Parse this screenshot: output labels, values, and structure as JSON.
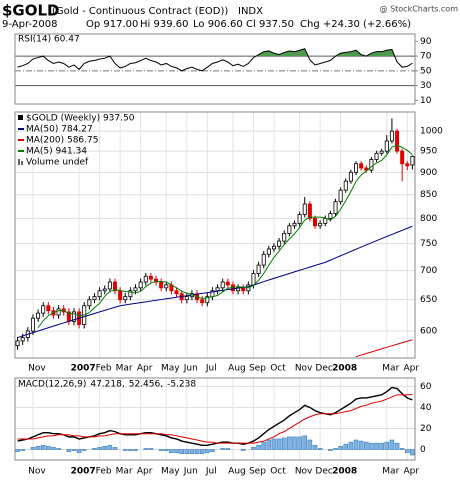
{
  "header": {
    "symbol": "$GOLD",
    "description": "(Gold - Continuous Contract (EOD))",
    "exchange": "INDX",
    "source": "@ StockCharts.com",
    "date": "9-Apr-2008",
    "open": "Op 917.00",
    "high": "Hi 939.60",
    "low": "Lo 906.60",
    "close": "Cl 937.50",
    "change": "Chg +24.30 (+2.66%)"
  },
  "chart_data": [
    {
      "type": "line",
      "title": "RSI(14) 60.47",
      "series": [
        {
          "color": "#000000",
          "values": [
            55,
            57,
            60,
            66,
            68,
            70,
            64,
            60,
            62,
            60,
            55,
            58,
            52,
            60,
            63,
            64,
            66,
            67,
            70,
            60,
            54,
            56,
            60,
            61,
            64,
            67,
            64,
            62,
            58,
            60,
            56,
            54,
            50,
            53,
            55,
            52,
            50,
            55,
            60,
            62,
            65,
            62,
            57,
            59,
            56,
            60,
            68,
            72,
            76,
            77,
            74,
            72,
            75,
            77,
            76,
            78,
            80,
            65,
            58,
            60,
            62,
            64,
            70,
            74,
            75,
            76,
            78,
            72,
            70,
            74,
            76,
            76,
            78,
            79,
            62,
            55,
            56,
            60.47
          ]
        }
      ],
      "ylim": [
        5,
        100
      ],
      "yticks": [
        10,
        30,
        50,
        70,
        90
      ],
      "overbought": 70,
      "oversold": 30,
      "midline": 50,
      "fill_color": "#4e9a4e"
    },
    {
      "type": "candlestick",
      "title": "$GOLD (Weekly) 937.50",
      "categories": [
        null,
        null,
        null,
        "Nov",
        null,
        null,
        null,
        null,
        null,
        null,
        null,
        null,
        "2007",
        null,
        null,
        null,
        "Feb",
        null,
        null,
        null,
        "Mar",
        null,
        null,
        null,
        "Apr",
        null,
        null,
        null,
        null,
        "May",
        null,
        null,
        null,
        "Jun",
        null,
        null,
        null,
        "Jul",
        null,
        null,
        null,
        null,
        "Aug",
        null,
        null,
        null,
        "Sep",
        null,
        null,
        null,
        "Oct",
        null,
        null,
        null,
        null,
        "Nov",
        null,
        null,
        null,
        "Dec",
        null,
        null,
        null,
        "2008",
        null,
        null,
        null,
        null,
        null,
        null,
        null,
        null,
        "Mar",
        null,
        null,
        null,
        "Apr",
        null
      ],
      "open": [
        578,
        585,
        590,
        600,
        620,
        628,
        640,
        632,
        625,
        635,
        630,
        615,
        630,
        610,
        640,
        650,
        655,
        665,
        668,
        680,
        665,
        650,
        655,
        665,
        670,
        680,
        690,
        685,
        680,
        670,
        675,
        665,
        660,
        650,
        655,
        660,
        650,
        645,
        655,
        665,
        670,
        680,
        675,
        665,
        670,
        665,
        675,
        695,
        710,
        730,
        740,
        745,
        755,
        770,
        785,
        790,
        808,
        830,
        800,
        785,
        790,
        800,
        810,
        835,
        860,
        880,
        900,
        920,
        910,
        905,
        930,
        945,
        950,
        975,
        1000,
        950,
        920,
        917
      ],
      "high": [
        591,
        596,
        606,
        626,
        634,
        646,
        646,
        638,
        641,
        641,
        636,
        636,
        636,
        646,
        656,
        661,
        671,
        674,
        686,
        686,
        671,
        661,
        671,
        676,
        686,
        696,
        696,
        691,
        686,
        681,
        681,
        671,
        666,
        661,
        666,
        666,
        656,
        661,
        671,
        676,
        686,
        686,
        681,
        676,
        676,
        681,
        701,
        716,
        736,
        746,
        751,
        761,
        776,
        791,
        796,
        814,
        845,
        836,
        806,
        796,
        806,
        816,
        841,
        866,
        886,
        906,
        926,
        926,
        916,
        936,
        951,
        956,
        990,
        1033,
        1006,
        956,
        926,
        939.6
      ],
      "low": [
        572,
        579,
        584,
        594,
        614,
        622,
        626,
        619,
        619,
        624,
        609,
        609,
        604,
        604,
        634,
        644,
        649,
        659,
        662,
        659,
        644,
        644,
        649,
        659,
        664,
        674,
        679,
        674,
        664,
        664,
        659,
        654,
        644,
        644,
        649,
        644,
        639,
        639,
        649,
        659,
        664,
        669,
        659,
        659,
        659,
        659,
        669,
        689,
        704,
        724,
        734,
        739,
        749,
        764,
        779,
        784,
        802,
        794,
        779,
        779,
        784,
        794,
        804,
        829,
        854,
        874,
        894,
        904,
        899,
        899,
        924,
        939,
        944,
        969,
        944,
        880,
        905,
        906.6
      ],
      "close": [
        585,
        590,
        600,
        620,
        628,
        640,
        632,
        625,
        635,
        630,
        615,
        630,
        610,
        640,
        650,
        655,
        665,
        668,
        680,
        665,
        650,
        655,
        665,
        670,
        680,
        690,
        685,
        680,
        670,
        675,
        665,
        660,
        650,
        655,
        660,
        650,
        645,
        655,
        665,
        670,
        680,
        675,
        665,
        670,
        665,
        675,
        695,
        710,
        730,
        740,
        745,
        755,
        770,
        785,
        790,
        808,
        830,
        800,
        785,
        790,
        800,
        810,
        835,
        860,
        880,
        900,
        920,
        910,
        905,
        930,
        945,
        950,
        975,
        1000,
        950,
        920,
        915,
        937.5
      ],
      "up_color": "#000000",
      "down_color": "#e00000",
      "overlays": [
        {
          "name": "MA(50) 784.27",
          "color": "#000080",
          "values": [
            590,
            592.5,
            595,
            597.5,
            600,
            602.5,
            605,
            607.5,
            610,
            612.5,
            615,
            617.5,
            620,
            622.5,
            625,
            627.5,
            630,
            632.5,
            635,
            637.5,
            640,
            641.3,
            642.6,
            643.8,
            645.1,
            646.4,
            647.7,
            649,
            650.2,
            651.5,
            652.8,
            654.1,
            655.4,
            656.6,
            657.9,
            659.2,
            660.5,
            661.8,
            663,
            664.3,
            665.6,
            666.9,
            668.2,
            669.4,
            670.7,
            672,
            674.9,
            677.7,
            680.6,
            683.5,
            686.4,
            689.2,
            692.1,
            695,
            697.8,
            700.7,
            703.6,
            706.4,
            709.3,
            712.2,
            715,
            719.1,
            723.1,
            727.2,
            731.3,
            735.4,
            739.4,
            743.5,
            747.6,
            751.6,
            755.7,
            759.8,
            763.9,
            767.9,
            772,
            776.1,
            780.2,
            784.27
          ]
        },
        {
          "name": "MA(200) 586.75",
          "color": "#e00000",
          "values": [
            null,
            null,
            null,
            null,
            null,
            null,
            null,
            null,
            null,
            null,
            null,
            null,
            null,
            null,
            null,
            null,
            null,
            null,
            null,
            null,
            null,
            null,
            null,
            null,
            null,
            null,
            null,
            null,
            null,
            null,
            null,
            null,
            null,
            null,
            null,
            null,
            null,
            null,
            null,
            null,
            null,
            null,
            null,
            null,
            null,
            null,
            null,
            null,
            null,
            null,
            null,
            null,
            null,
            null,
            null,
            null,
            null,
            null,
            null,
            null,
            null,
            null,
            null,
            null,
            null,
            null,
            562,
            564.2,
            566.5,
            568.7,
            571,
            573.2,
            575.5,
            577.7,
            580,
            582.2,
            584.5,
            586.75
          ]
        },
        {
          "name": "MA(5) 941.34",
          "color": "#008000",
          "values": [
            null,
            null,
            null,
            null,
            605,
            616,
            624,
            629,
            632,
            632,
            627.4,
            627,
            624,
            625,
            629,
            637,
            644,
            655.6,
            663.6,
            666.6,
            665.6,
            663.6,
            663,
            661,
            664,
            672,
            678,
            681,
            681,
            680,
            675,
            670,
            664,
            661,
            658,
            655,
            652,
            653,
            655,
            657,
            663,
            669,
            671,
            672,
            671,
            670,
            674,
            683,
            695,
            710,
            724,
            736,
            748,
            759,
            769,
            781.6,
            796.6,
            802.6,
            802.6,
            802.6,
            801,
            797,
            804,
            819,
            837,
            857,
            879,
            894,
            903,
            913,
            922,
            928,
            941,
            960,
            964,
            959,
            952,
            941.34
          ]
        }
      ],
      "legend_extra": "Volume undef",
      "log": true,
      "ylim": [
        560,
        1050
      ],
      "yticks": [
        600,
        650,
        700,
        750,
        800,
        850,
        900,
        950,
        1000
      ],
      "grid": true
    },
    {
      "type": "macd",
      "title": "MACD(12,26,9)",
      "categories": [
        null,
        null,
        null,
        "Nov",
        null,
        null,
        null,
        null,
        null,
        null,
        null,
        null,
        "2007",
        null,
        null,
        null,
        "Feb",
        null,
        null,
        null,
        "Mar",
        null,
        null,
        null,
        "Apr",
        null,
        null,
        null,
        null,
        "May",
        null,
        null,
        null,
        "Jun",
        null,
        null,
        null,
        "Jul",
        null,
        null,
        null,
        null,
        "Aug",
        null,
        null,
        null,
        "Sep",
        null,
        null,
        null,
        "Oct",
        null,
        null,
        null,
        null,
        "Nov",
        null,
        null,
        null,
        "Dec",
        null,
        null,
        null,
        "2008",
        null,
        null,
        null,
        null,
        null,
        null,
        null,
        null,
        "Mar",
        null,
        null,
        null,
        "Apr",
        null
      ],
      "series": [
        {
          "name": "47.218,",
          "color": "#000000",
          "style": "line",
          "values": [
            8,
            9,
            10,
            12,
            14,
            16,
            16,
            15,
            15,
            14,
            12,
            12,
            10,
            11,
            12,
            13,
            15,
            16,
            18,
            17,
            15,
            14,
            14,
            14,
            15,
            16,
            16,
            15,
            14,
            13,
            11,
            10,
            8,
            7,
            6,
            5,
            4,
            4,
            5,
            6,
            7,
            7,
            6,
            6,
            5,
            6,
            8,
            11,
            15,
            19,
            22,
            25,
            28,
            32,
            35,
            38,
            42,
            40,
            37,
            35,
            34,
            33,
            35,
            38,
            41,
            44,
            48,
            49,
            49,
            50,
            51,
            52,
            55,
            59,
            58,
            53,
            49,
            47.218
          ]
        },
        {
          "name": "52.456,",
          "color": "#e00000",
          "style": "line",
          "values": [
            10,
            10,
            10,
            10,
            11,
            12,
            13,
            13,
            14,
            14,
            14,
            13,
            13,
            12,
            12,
            12,
            13,
            13,
            14,
            15,
            15,
            15,
            15,
            15,
            15,
            15,
            15,
            15,
            15,
            14,
            14,
            13,
            12,
            11,
            10,
            9,
            8,
            7,
            7,
            6,
            6,
            6,
            6,
            6,
            6,
            6,
            6,
            7,
            8,
            10,
            12,
            15,
            17,
            20,
            23,
            26,
            29,
            31,
            33,
            34,
            34,
            34,
            34,
            35,
            36,
            37,
            39,
            41,
            42,
            44,
            45,
            46,
            48,
            50,
            52,
            52,
            52,
            52.456
          ]
        },
        {
          "name": "-5.238",
          "color": "#3a7fc0",
          "style": "bar",
          "values": [
            -2,
            -1,
            0,
            2,
            3,
            4,
            3,
            2,
            1,
            0,
            -2,
            -1,
            -3,
            -1,
            0,
            1,
            2,
            3,
            4,
            2,
            0,
            -1,
            -1,
            -1,
            0,
            1,
            1,
            0,
            -1,
            -1,
            -3,
            -3,
            -4,
            -4,
            -4,
            -4,
            -4,
            -3,
            -2,
            0,
            1,
            1,
            0,
            0,
            -1,
            0,
            2,
            4,
            7,
            9,
            10,
            10,
            11,
            12,
            12,
            12,
            13,
            9,
            4,
            1,
            0,
            -1,
            1,
            3,
            5,
            7,
            9,
            8,
            7,
            6,
            6,
            6,
            7,
            9,
            6,
            1,
            -3,
            -5.238
          ]
        }
      ],
      "ylim": [
        -10,
        68
      ],
      "yticks": [
        0,
        20,
        40,
        60
      ],
      "grid": true
    }
  ]
}
